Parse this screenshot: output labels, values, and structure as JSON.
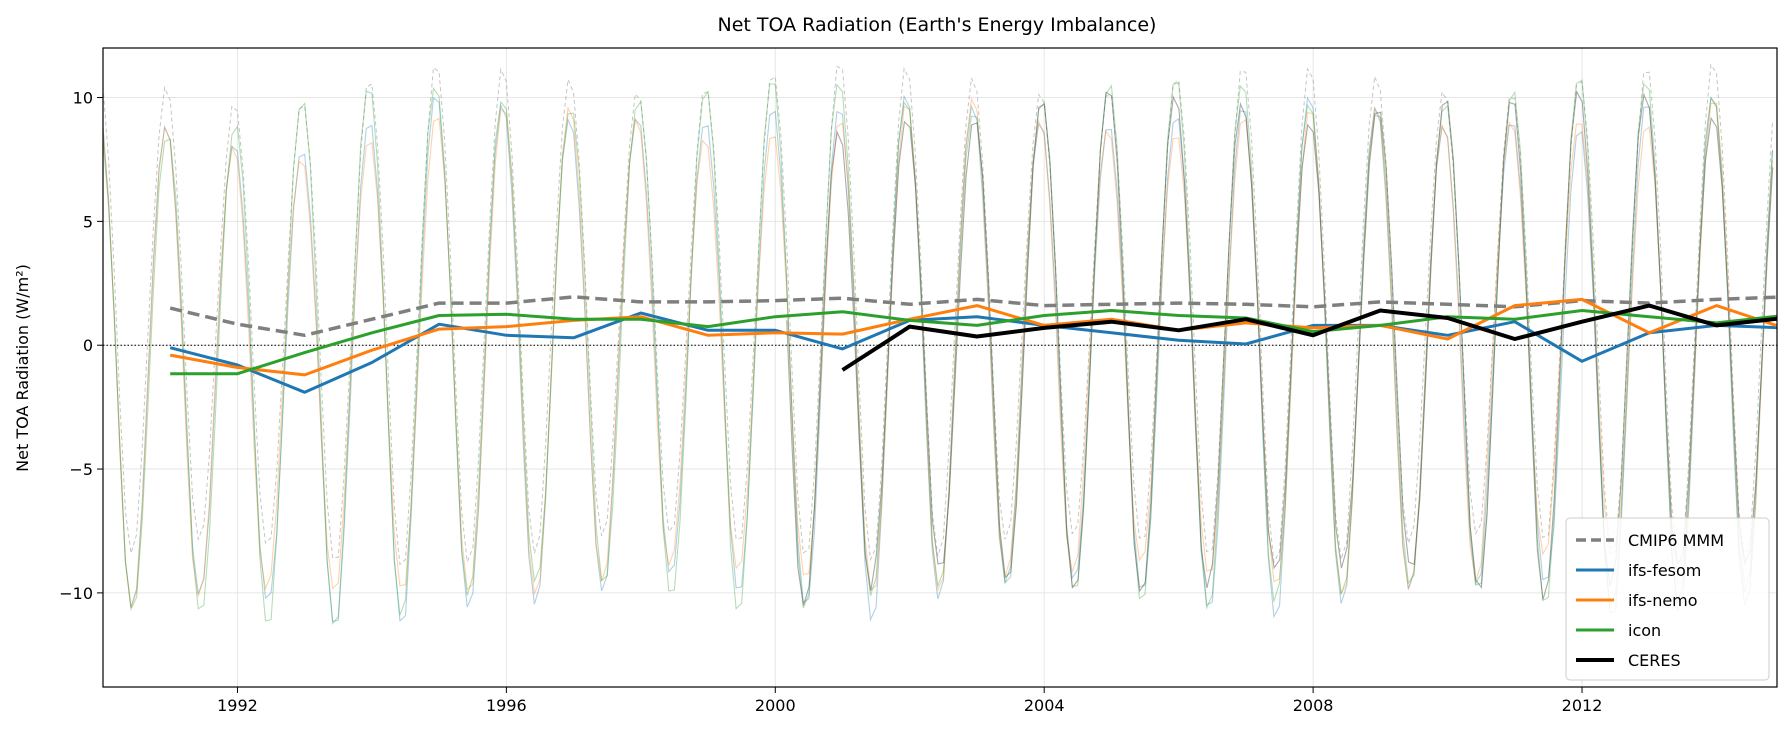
{
  "chart_data": {
    "type": "line",
    "title": "Net TOA Radiation (Earth's Energy Imbalance)",
    "xlabel": "",
    "ylabel": "Net TOA Radiation (W/m²)",
    "xlim": [
      1990.0,
      2014.9
    ],
    "ylim": [
      -13.8,
      12.0
    ],
    "xticks": [
      1992,
      1996,
      2000,
      2004,
      2008,
      2012
    ],
    "yticks": [
      -10,
      -5,
      0,
      5,
      10
    ],
    "ytick_labels": [
      "−10",
      "−5",
      "0",
      "5",
      "10"
    ],
    "grid": true,
    "zero_line": true,
    "legend_position": "bottom-right",
    "monthly_climatology_note_free": true,
    "annual_x": [
      1991,
      1992,
      1993,
      1994,
      1995,
      1996,
      1997,
      1998,
      1999,
      2000,
      2001,
      2002,
      2003,
      2004,
      2005,
      2006,
      2007,
      2008,
      2009,
      2010,
      2011,
      2012,
      2013,
      2014,
      2015
    ],
    "series": [
      {
        "name": "CMIP6 MMM",
        "color": "#7f7f7f",
        "dashed": true,
        "width": 3.5,
        "annual": [
          1.5,
          0.85,
          0.4,
          1.05,
          1.7,
          1.7,
          1.95,
          1.75,
          1.75,
          1.8,
          1.9,
          1.65,
          1.85,
          1.6,
          1.65,
          1.7,
          1.65,
          1.55,
          1.75,
          1.65,
          1.55,
          1.8,
          1.7,
          1.85,
          1.95
        ],
        "monthly_climatology": [
          9.6,
          7.0,
          2.8,
          -2.4,
          -7.0,
          -9.0,
          -8.6,
          -5.4,
          -1.0,
          3.5,
          7.5,
          9.8
        ],
        "monthly_start": 1990.0
      },
      {
        "name": "ifs-fesom",
        "color": "#1f77b4",
        "dashed": false,
        "width": 3,
        "annual": [
          -0.1,
          -0.8,
          -1.9,
          -0.7,
          0.85,
          0.4,
          0.3,
          1.3,
          0.6,
          0.6,
          -0.15,
          1.0,
          1.15,
          0.8,
          0.5,
          0.2,
          0.05,
          0.8,
          0.8,
          0.4,
          0.95,
          -0.65,
          0.5,
          0.8,
          0.7
        ],
        "monthly_climatology": [
          8.8,
          6.0,
          1.8,
          -3.5,
          -8.2,
          -10.4,
          -10.0,
          -6.8,
          -2.0,
          3.0,
          7.0,
          9.0
        ],
        "monthly_start": 1990.0
      },
      {
        "name": "ifs-nemo",
        "color": "#ff7f0e",
        "dashed": false,
        "width": 3,
        "annual": [
          -0.4,
          -0.9,
          -1.2,
          -0.2,
          0.65,
          0.75,
          1.0,
          1.15,
          0.4,
          0.5,
          0.45,
          1.05,
          1.6,
          0.8,
          1.05,
          0.6,
          0.9,
          0.7,
          0.8,
          0.25,
          1.6,
          1.85,
          0.5,
          1.6,
          0.7
        ],
        "monthly_climatology": [
          8.4,
          5.8,
          1.6,
          -3.6,
          -8.0,
          -9.8,
          -9.4,
          -6.4,
          -1.8,
          2.8,
          6.6,
          8.6
        ],
        "monthly_start": 1990.0
      },
      {
        "name": "icon",
        "color": "#2ca02c",
        "dashed": false,
        "width": 3,
        "annual": [
          -1.15,
          -1.15,
          -0.3,
          0.5,
          1.2,
          1.25,
          1.05,
          1.05,
          0.75,
          1.15,
          1.35,
          1.0,
          0.8,
          1.2,
          1.4,
          1.2,
          1.1,
          0.55,
          0.8,
          1.15,
          1.05,
          1.4,
          1.15,
          0.9,
          1.2
        ],
        "monthly_climatology": [
          9.4,
          6.8,
          2.2,
          -3.2,
          -8.4,
          -10.6,
          -10.2,
          -7.0,
          -2.2,
          3.0,
          7.4,
          9.4
        ],
        "monthly_start": 1990.0
      },
      {
        "name": "CERES",
        "color": "#000000",
        "dashed": false,
        "width": 4,
        "annual_x": [
          2001,
          2002,
          2003,
          2004,
          2005,
          2006,
          2007,
          2008,
          2009,
          2010,
          2011,
          2012,
          2013,
          2014,
          2015
        ],
        "annual": [
          -1.0,
          0.75,
          0.35,
          0.7,
          0.95,
          0.6,
          1.05,
          0.4,
          1.4,
          1.1,
          0.25,
          0.95,
          1.6,
          0.8,
          1.1
        ],
        "monthly_climatology": [
          9.0,
          6.4,
          2.0,
          -3.2,
          -8.0,
          -9.8,
          -9.4,
          -6.4,
          -1.6,
          3.2,
          7.2,
          9.2
        ],
        "monthly_start": 2000.17
      }
    ]
  }
}
